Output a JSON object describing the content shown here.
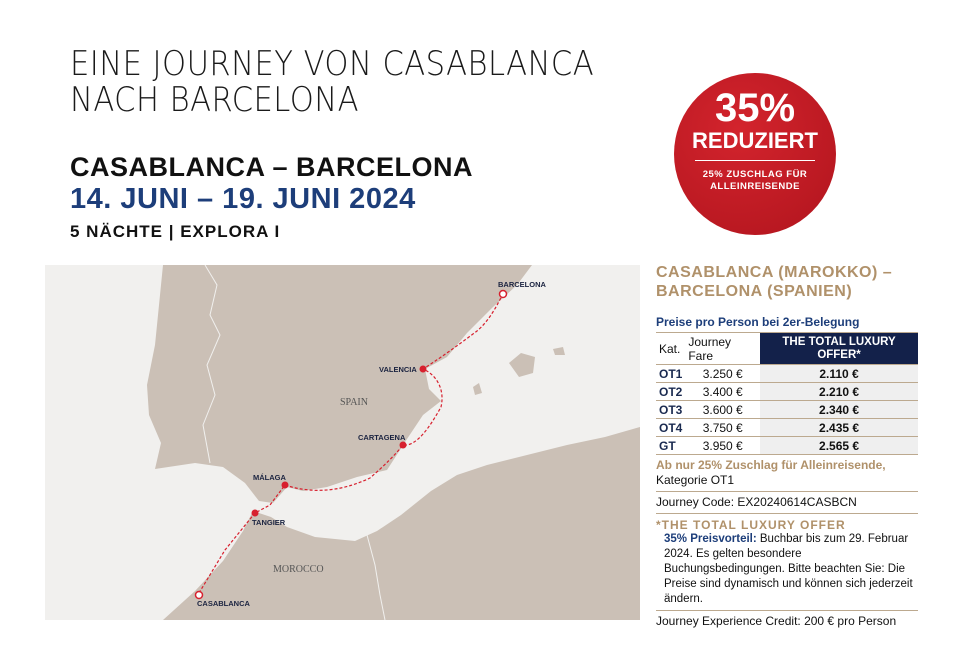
{
  "headline": {
    "line1": "EINE JOURNEY VON CASABLANCA",
    "line2": "NACH BARCELONA"
  },
  "route": "CASABLANCA – BARCELONA",
  "dates": "14. JUNI – 19. JUNI 2024",
  "ship": "5 NÄCHTE | EXPLORA I",
  "badge": {
    "percent": "35%",
    "label": "REDUZIERT",
    "note_line1": "25% ZUSCHLAG FÜR",
    "note_line2": "ALLEINREISENDE",
    "color": "#c41e27"
  },
  "map": {
    "country_labels": [
      "SPAIN",
      "MOROCCO"
    ],
    "ports": [
      "CASABLANCA",
      "TANGIER",
      "MÁLAGA",
      "CARTAGENA",
      "VALENCIA",
      "BARCELONA"
    ],
    "route_color": "#d7202e"
  },
  "panel": {
    "title_line1": "CASABLANCA (MAROKKO) –",
    "title_line2": "BARCELONA (SPANIEN)",
    "subtitle": "Preise pro Person bei 2er-Belegung",
    "headers": {
      "cat": "Kat.",
      "fare": "Journey Fare",
      "offer": "THE TOTAL LUXURY OFFER*"
    },
    "rows": [
      {
        "cat": "OT1",
        "fare": "3.250 €",
        "offer": "2.110 €"
      },
      {
        "cat": "OT2",
        "fare": "3.400 €",
        "offer": "2.210 €"
      },
      {
        "cat": "OT3",
        "fare": "3.600 €",
        "offer": "2.340 €"
      },
      {
        "cat": "OT4",
        "fare": "3.750 €",
        "offer": "2.435 €"
      },
      {
        "cat": "GT",
        "fare": "3.950 €",
        "offer": "2.565 €"
      }
    ],
    "single_note": "Ab nur 25% Zuschlag für Alleinreisende,",
    "single_cat": "Kategorie OT1",
    "journey_code": "Journey Code: EX20240614CASBCN",
    "offer_title": "*THE TOTAL LUXURY OFFER",
    "offer_bold": "35% Preisvorteil:",
    "offer_text": " Buchbar bis zum 29. Februar 2024. Es gelten besondere Buchungsbedingungen. Bitte beachten Sie: Die Preise sind dynamisch und können sich jederzeit ändern.",
    "credit": "Journey Experience Credit: 200 € pro Person"
  }
}
